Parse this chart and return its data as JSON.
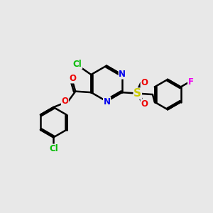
{
  "bg_color": "#e8e8e8",
  "bond_color": "#000000",
  "bond_width": 1.8,
  "atom_colors": {
    "C": "#000000",
    "N": "#0000ee",
    "O": "#ee0000",
    "S": "#cccc00",
    "Cl": "#00bb00",
    "F": "#ee00ee"
  },
  "font_size": 8.5,
  "s_font_size": 11
}
